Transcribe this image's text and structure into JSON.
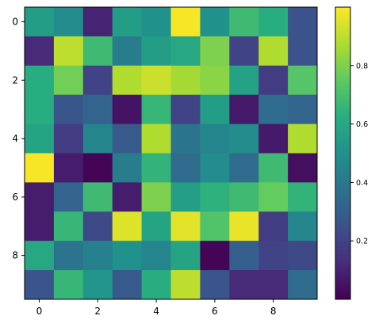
{
  "chart_data": {
    "type": "heatmap",
    "title": "",
    "xlabel": "",
    "ylabel": "",
    "rows": 10,
    "cols": 10,
    "x_ticks": [
      "0",
      "2",
      "4",
      "6",
      "8"
    ],
    "y_ticks": [
      "0",
      "2",
      "4",
      "6",
      "8"
    ],
    "x_tick_values": [
      0,
      2,
      4,
      6,
      8
    ],
    "y_tick_values": [
      0,
      2,
      4,
      6,
      8
    ],
    "colormap": "viridis",
    "colorbar": {
      "range": [
        0.0,
        1.0
      ],
      "ticks": [
        "0.2",
        "0.4",
        "0.6",
        "0.8"
      ],
      "tick_values": [
        0.2,
        0.4,
        0.6,
        0.8
      ]
    },
    "values": [
      [
        0.55,
        0.48,
        0.1,
        0.55,
        0.5,
        0.99,
        0.5,
        0.68,
        0.62,
        0.25
      ],
      [
        0.12,
        0.9,
        0.68,
        0.42,
        0.55,
        0.6,
        0.8,
        0.2,
        0.88,
        0.25
      ],
      [
        0.62,
        0.78,
        0.2,
        0.88,
        0.92,
        0.86,
        0.82,
        0.57,
        0.18,
        0.73
      ],
      [
        0.62,
        0.26,
        0.32,
        0.05,
        0.66,
        0.2,
        0.55,
        0.07,
        0.35,
        0.32
      ],
      [
        0.58,
        0.18,
        0.45,
        0.28,
        0.88,
        0.38,
        0.45,
        0.48,
        0.07,
        0.88
      ],
      [
        0.99,
        0.08,
        0.01,
        0.42,
        0.65,
        0.35,
        0.48,
        0.35,
        0.68,
        0.04
      ],
      [
        0.08,
        0.32,
        0.68,
        0.08,
        0.8,
        0.56,
        0.64,
        0.68,
        0.76,
        0.65
      ],
      [
        0.08,
        0.66,
        0.22,
        0.95,
        0.58,
        0.96,
        0.72,
        0.97,
        0.18,
        0.45
      ],
      [
        0.6,
        0.38,
        0.43,
        0.5,
        0.45,
        0.58,
        0.01,
        0.3,
        0.2,
        0.22
      ],
      [
        0.26,
        0.66,
        0.52,
        0.28,
        0.62,
        0.9,
        0.26,
        0.12,
        0.12,
        0.35
      ]
    ]
  }
}
